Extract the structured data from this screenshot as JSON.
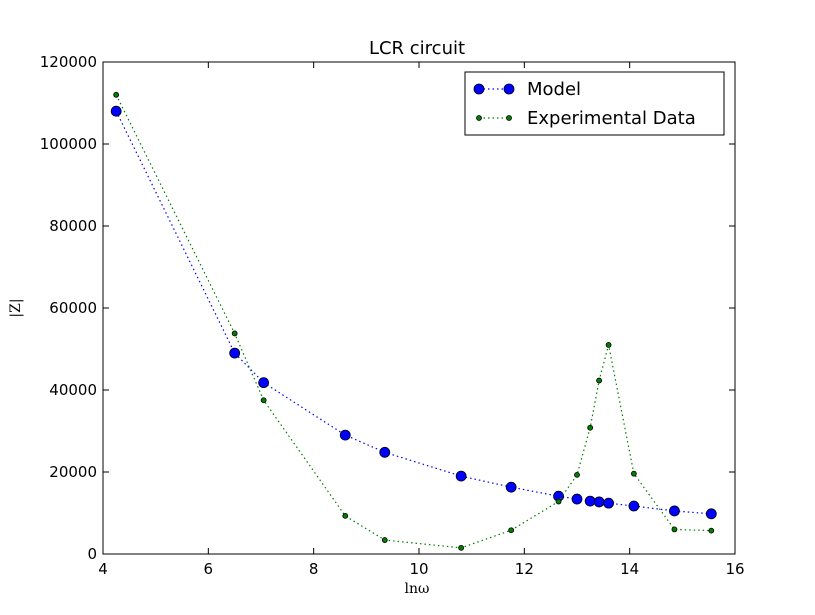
{
  "chart_data": {
    "type": "line",
    "title": "LCR circuit",
    "xlabel": "lnω",
    "ylabel": "|Z|",
    "xlim": [
      4,
      16
    ],
    "ylim": [
      0,
      120000
    ],
    "xticks": [
      4,
      6,
      8,
      10,
      12,
      14,
      16
    ],
    "yticks": [
      0,
      20000,
      40000,
      60000,
      80000,
      100000,
      120000
    ],
    "grid": false,
    "legend_position": "top-right",
    "series": [
      {
        "name": "Model",
        "color": "#0000ff",
        "marker": "circle-large",
        "linestyle": "dotted",
        "x": [
          4.25,
          6.5,
          7.05,
          8.6,
          9.35,
          10.8,
          11.75,
          12.65,
          13.0,
          13.25,
          13.42,
          13.6,
          14.08,
          14.85,
          15.55
        ],
        "y": [
          108000,
          49000,
          41800,
          29000,
          24800,
          19000,
          16300,
          14100,
          13400,
          12900,
          12700,
          12400,
          11700,
          10500,
          9800
        ]
      },
      {
        "name": "Experimental Data",
        "color": "#007f00",
        "marker": "circle-small",
        "linestyle": "dotted",
        "x": [
          4.25,
          6.5,
          7.05,
          8.6,
          9.35,
          10.8,
          11.75,
          12.65,
          13.0,
          13.25,
          13.42,
          13.6,
          14.08,
          14.85,
          15.55
        ],
        "y": [
          112000,
          53800,
          37500,
          9300,
          3400,
          1500,
          5800,
          12800,
          19300,
          30800,
          42300,
          51000,
          19600,
          6000,
          5700
        ]
      }
    ]
  }
}
